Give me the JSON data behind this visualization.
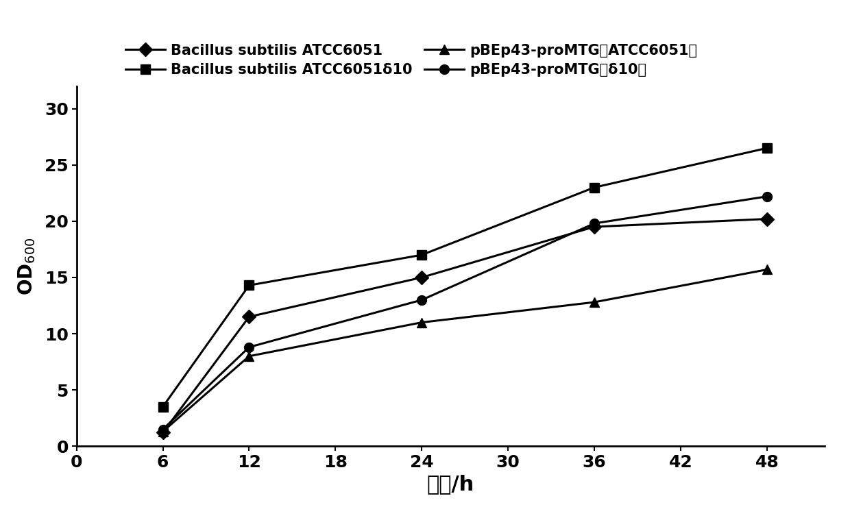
{
  "x": [
    6,
    12,
    24,
    36,
    48
  ],
  "series": [
    {
      "label": "Bacillus subtilis ATCC6051",
      "y": [
        1.2,
        11.5,
        15.0,
        19.5,
        20.2
      ],
      "marker": "D",
      "markersize": 10,
      "color": "#000000",
      "linewidth": 2.2
    },
    {
      "label": "Bacillus subtilis ATCC6051Ä10",
      "y": [
        3.5,
        14.3,
        17.0,
        23.0,
        26.5
      ],
      "marker": "s",
      "markersize": 10,
      "color": "#000000",
      "linewidth": 2.2
    },
    {
      "label": "pBEp43-proMTG（ATCC6051）",
      "y": [
        1.3,
        8.0,
        11.0,
        12.8,
        15.7
      ],
      "marker": "^",
      "markersize": 10,
      "color": "#000000",
      "linewidth": 2.2
    },
    {
      "label": "pBEp43-proMTG（Ä10）",
      "y": [
        1.5,
        8.8,
        13.0,
        19.8,
        22.2
      ],
      "marker": "o",
      "markersize": 10,
      "color": "#000000",
      "linewidth": 2.2
    }
  ],
  "xlabel": "时间/h",
  "ylabel": "OD",
  "ylabel_sub": "600",
  "xlim": [
    0,
    52
  ],
  "ylim": [
    0,
    32
  ],
  "xticks": [
    0,
    6,
    12,
    18,
    24,
    30,
    36,
    42,
    48
  ],
  "yticks": [
    0,
    5,
    10,
    15,
    20,
    25,
    30
  ],
  "xlabel_fontsize": 22,
  "ylabel_fontsize": 20,
  "tick_fontsize": 18,
  "legend_fontsize": 15,
  "background_color": "#ffffff"
}
